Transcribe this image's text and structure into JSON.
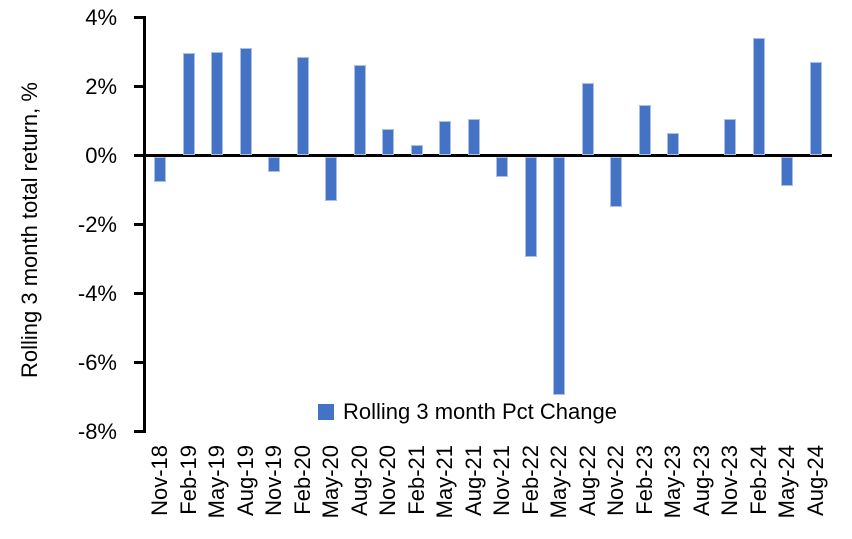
{
  "chart_data": {
    "type": "bar",
    "title": "",
    "xlabel": "",
    "ylabel": "Rolling 3 month total return, %",
    "series_name": "Rolling 3 month Pct Change",
    "categories": [
      "Nov-18",
      "Feb-19",
      "May-19",
      "Aug-19",
      "Nov-19",
      "Feb-20",
      "May-20",
      "Aug-20",
      "Nov-20",
      "Feb-21",
      "May-21",
      "Aug-21",
      "Nov-21",
      "Feb-22",
      "May-22",
      "Aug-22",
      "Nov-22",
      "Feb-23",
      "May-23",
      "Aug-23",
      "Nov-23",
      "Feb-24",
      "May-24",
      "Aug-24"
    ],
    "values": [
      -0.75,
      2.95,
      3.0,
      3.1,
      -0.45,
      2.85,
      -1.3,
      2.6,
      0.75,
      0.3,
      1.0,
      1.05,
      -0.6,
      -2.9,
      -6.9,
      2.1,
      -1.45,
      1.45,
      0.65,
      0.0,
      1.05,
      3.4,
      -0.85,
      2.7
    ],
    "ylim": [
      -8,
      4
    ],
    "ytick_step": 2,
    "ytick_labels": [
      "4%",
      "2%",
      "0%",
      "-2%",
      "-4%",
      "-6%",
      "-8%"
    ],
    "grid": false,
    "legend_position": "bottom-center",
    "bar_color": "#4472C4",
    "bar_edge_color": "#a9bfe8",
    "axis_color": "#000000",
    "text_color": "#000000"
  }
}
